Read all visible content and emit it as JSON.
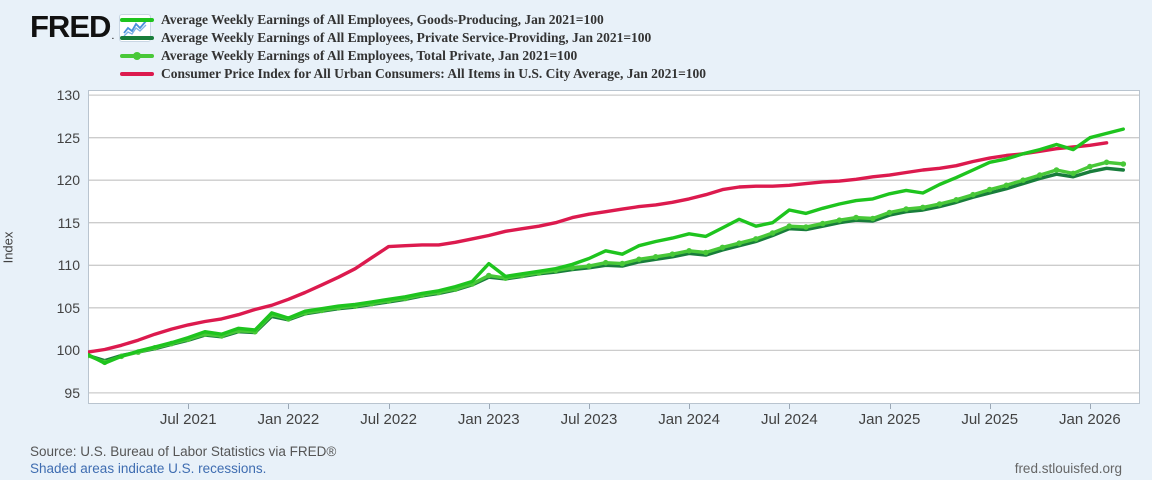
{
  "header": {
    "logo_text": "FRED",
    "logo_icon": "sparkline-icon"
  },
  "footer": {
    "source": "Source: U.S. Bureau of Labor Statistics via FRED®",
    "recession_note": "Shaded areas indicate U.S. recessions.",
    "site": "fred.stlouisfed.org"
  },
  "colors": {
    "background": "#e8f1f9",
    "plot_background": "#ffffff",
    "gridline": "#cccccc",
    "plot_border": "#b9c4cf",
    "logo_sparkline": "#4a90d9",
    "link_blue": "#3f6db1"
  },
  "chart_data": {
    "type": "line",
    "title": "",
    "xlabel": "",
    "ylabel": "Index",
    "grid": "horizontal-only",
    "legend_position": "top-left",
    "x_start": "Jan 2021",
    "x_months_domain": 63,
    "ylim": [
      93.7,
      130.6
    ],
    "yticks": [
      95,
      100,
      105,
      110,
      115,
      120,
      125,
      130
    ],
    "xticks": [
      {
        "i": 6,
        "label": "Jul 2021"
      },
      {
        "i": 12,
        "label": "Jan 2022"
      },
      {
        "i": 18,
        "label": "Jul 2022"
      },
      {
        "i": 24,
        "label": "Jan 2023"
      },
      {
        "i": 30,
        "label": "Jul 2023"
      },
      {
        "i": 36,
        "label": "Jan 2024"
      },
      {
        "i": 42,
        "label": "Jul 2024"
      },
      {
        "i": 48,
        "label": "Jan 2025"
      },
      {
        "i": 54,
        "label": "Jul 2025"
      },
      {
        "i": 60,
        "label": "Jan 2026"
      }
    ],
    "series": [
      {
        "name": "Average Weekly Earnings of All Employees, Goods-Producing, Jan 2021=100",
        "color": "#1ec41e",
        "marker": false,
        "values": [
          99.5,
          98.5,
          99.3,
          99.9,
          100.4,
          100.9,
          101.5,
          102.2,
          101.9,
          102.6,
          102.4,
          104.4,
          103.8,
          104.6,
          104.9,
          105.2,
          105.4,
          105.7,
          106.0,
          106.3,
          106.7,
          107.0,
          107.5,
          108.1,
          110.2,
          108.7,
          109.0,
          109.3,
          109.6,
          110.1,
          110.8,
          111.7,
          111.3,
          112.3,
          112.8,
          113.2,
          113.7,
          113.4,
          114.4,
          115.4,
          114.6,
          115.0,
          116.5,
          116.1,
          116.7,
          117.2,
          117.6,
          117.8,
          118.4,
          118.8,
          118.5,
          119.5,
          120.3,
          121.2,
          122.1,
          122.5,
          123.1,
          123.6,
          124.2,
          123.6,
          125.0,
          125.5,
          126.0
        ]
      },
      {
        "name": "Average Weekly Earnings of All Employees, Private Service-Providing, Jan 2021=100",
        "color": "#187d3b",
        "marker": false,
        "values": [
          99.4,
          98.8,
          99.4,
          99.8,
          100.2,
          100.7,
          101.2,
          101.8,
          101.6,
          102.2,
          102.1,
          104.0,
          103.6,
          104.3,
          104.6,
          104.9,
          105.1,
          105.4,
          105.7,
          106.0,
          106.4,
          106.7,
          107.1,
          107.7,
          108.6,
          108.4,
          108.7,
          109.0,
          109.2,
          109.5,
          109.7,
          110.0,
          109.9,
          110.4,
          110.7,
          111.0,
          111.4,
          111.2,
          111.8,
          112.3,
          112.8,
          113.5,
          114.3,
          114.2,
          114.6,
          115.0,
          115.3,
          115.2,
          115.9,
          116.3,
          116.5,
          116.9,
          117.4,
          118.0,
          118.5,
          119.0,
          119.6,
          120.2,
          120.7,
          120.4,
          121.0,
          121.4,
          121.2
        ]
      },
      {
        "name": "Average Weekly Earnings of All Employees, Total Private, Jan 2021=100",
        "color": "#48c838",
        "marker": true,
        "values": [
          99.4,
          98.6,
          99.3,
          99.8,
          100.3,
          100.8,
          101.3,
          101.9,
          101.7,
          102.3,
          102.2,
          104.2,
          103.7,
          104.4,
          104.7,
          105.0,
          105.2,
          105.5,
          105.8,
          106.1,
          106.5,
          106.8,
          107.2,
          107.8,
          108.8,
          108.5,
          108.8,
          109.1,
          109.4,
          109.7,
          109.9,
          110.3,
          110.2,
          110.7,
          111.0,
          111.3,
          111.7,
          111.5,
          112.1,
          112.6,
          113.1,
          113.8,
          114.6,
          114.5,
          114.9,
          115.3,
          115.6,
          115.5,
          116.2,
          116.6,
          116.8,
          117.2,
          117.7,
          118.3,
          118.9,
          119.4,
          120.0,
          120.6,
          121.2,
          120.8,
          121.6,
          122.1,
          121.9
        ]
      },
      {
        "name": "Consumer Price Index for All Urban Consumers: All Items in U.S. City Average, Jan 2021=100",
        "color": "#dc1a4e",
        "marker": false,
        "values": [
          99.8,
          100.1,
          100.6,
          101.2,
          101.9,
          102.5,
          103.0,
          103.4,
          103.7,
          104.2,
          104.8,
          105.3,
          106.0,
          106.8,
          107.7,
          108.6,
          109.6,
          110.9,
          112.2,
          112.3,
          112.4,
          112.4,
          112.7,
          113.1,
          113.5,
          114.0,
          114.3,
          114.6,
          115.0,
          115.6,
          116.0,
          116.3,
          116.6,
          116.9,
          117.1,
          117.4,
          117.8,
          118.3,
          118.9,
          119.2,
          119.3,
          119.3,
          119.4,
          119.6,
          119.8,
          119.9,
          120.1,
          120.4,
          120.6,
          120.9,
          121.2,
          121.4,
          121.7,
          122.2,
          122.6,
          122.9,
          123.1,
          123.4,
          123.7,
          123.9,
          124.1,
          124.4
        ]
      }
    ]
  }
}
